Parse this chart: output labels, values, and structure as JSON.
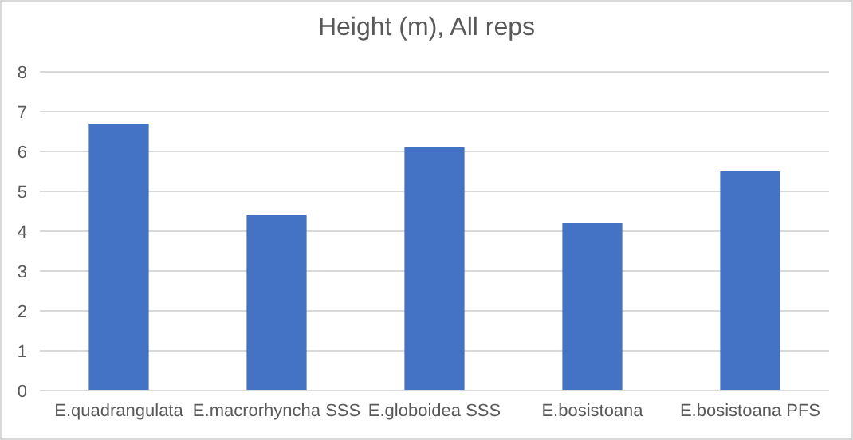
{
  "chart_data": {
    "type": "bar",
    "title": "Height (m), All reps",
    "categories": [
      "E.quadrangulata",
      "E.macrorhyncha SSS",
      "E.globoidea SSS",
      "E.bosistoana",
      "E.bosistoana PFS"
    ],
    "values": [
      6.7,
      4.4,
      6.1,
      4.2,
      5.5
    ],
    "color": "#4472c4",
    "ylim": [
      0,
      8
    ],
    "yticks": [
      0,
      1,
      2,
      3,
      4,
      5,
      6,
      7,
      8
    ],
    "grid": "y"
  }
}
